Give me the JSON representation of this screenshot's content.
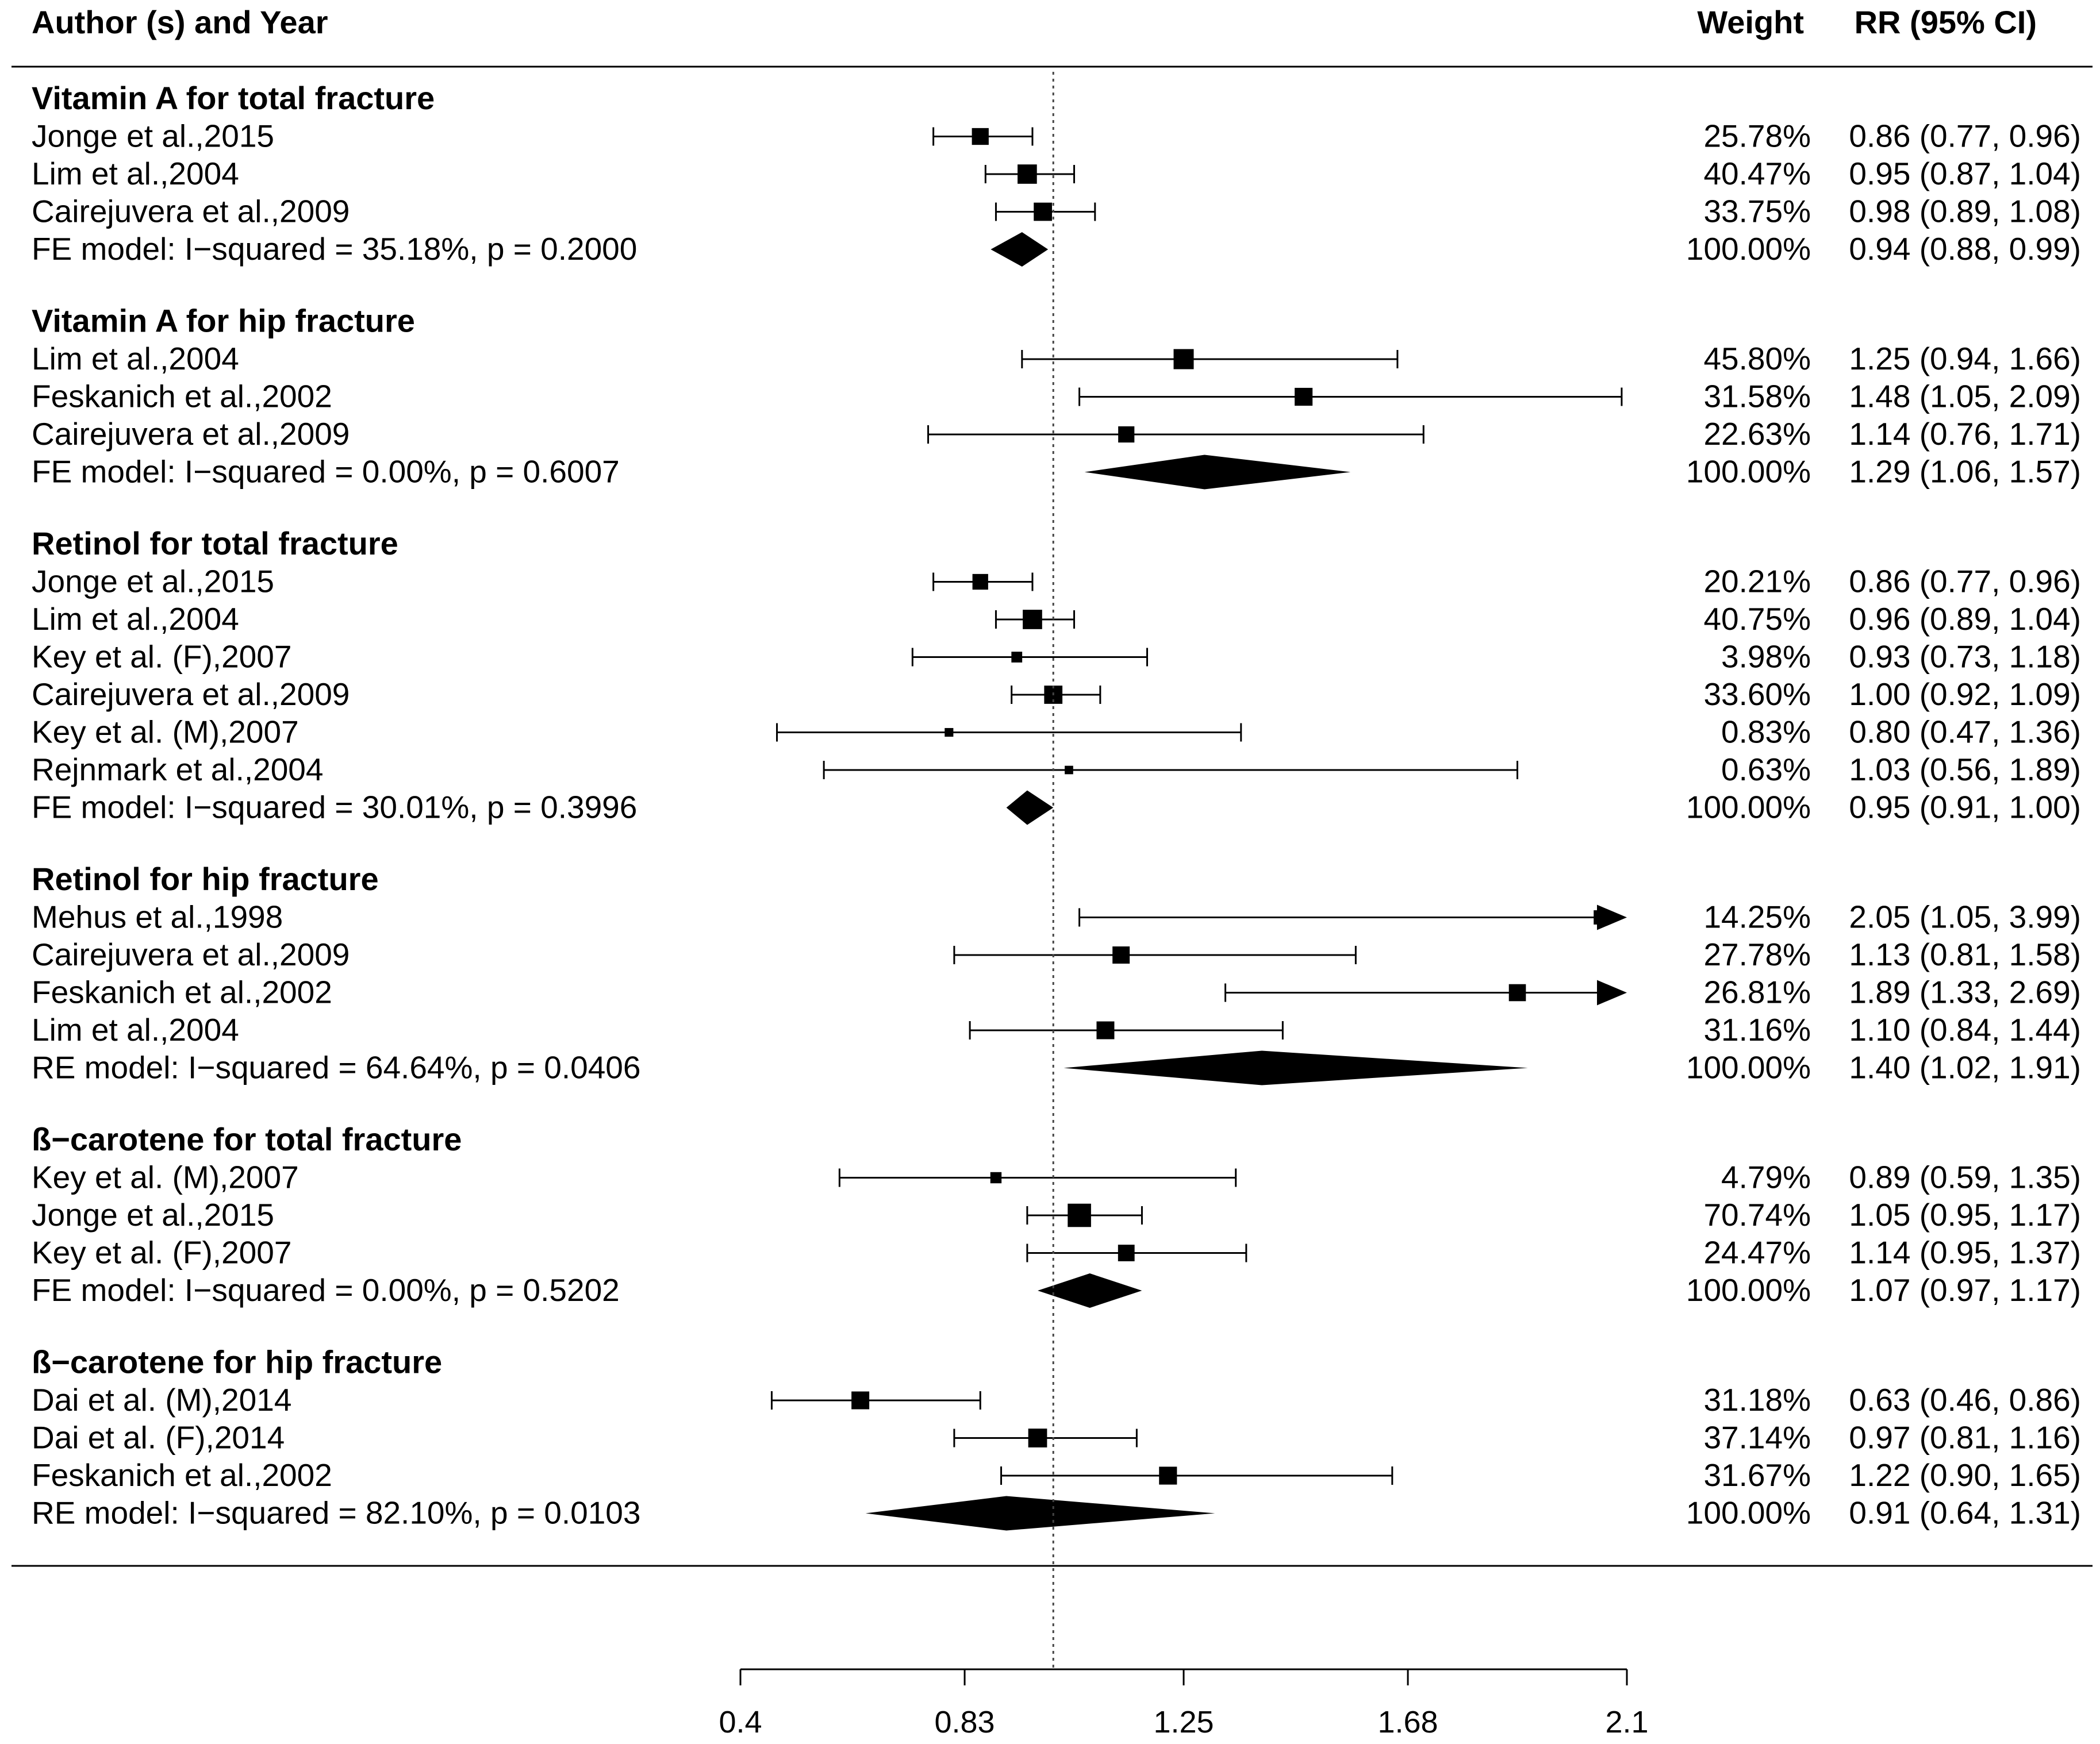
{
  "chart_data": {
    "type": "forest",
    "headers": {
      "study": "Author (s) and Year",
      "weight": "Weight",
      "effect": "RR (95% CI)"
    },
    "axis": {
      "min": 0.4,
      "max": 2.1,
      "ticks": [
        "0.4",
        "0.83",
        "1.25",
        "1.68",
        "2.1"
      ],
      "reference_line": 1.0
    },
    "sections": [
      {
        "title": "Vitamin A for total fracture",
        "studies": [
          {
            "label": "Jonge et al.,2015",
            "rr": 0.86,
            "lo": 0.77,
            "hi": 0.96,
            "weight": "25.78%",
            "ci_text": "0.86 (0.77, 0.96)"
          },
          {
            "label": "Lim et al.,2004",
            "rr": 0.95,
            "lo": 0.87,
            "hi": 1.04,
            "weight": "40.47%",
            "ci_text": "0.95 (0.87, 1.04)"
          },
          {
            "label": "Cairejuvera et al.,2009",
            "rr": 0.98,
            "lo": 0.89,
            "hi": 1.08,
            "weight": "33.75%",
            "ci_text": "0.98 (0.89, 1.08)"
          }
        ],
        "summary": {
          "label": "FE model: I−squared = 35.18%, p = 0.2000",
          "rr": 0.94,
          "lo": 0.88,
          "hi": 0.99,
          "weight": "100.00%",
          "ci_text": "0.94 (0.88, 0.99)"
        }
      },
      {
        "title": "Vitamin A for hip fracture",
        "studies": [
          {
            "label": "Lim et al.,2004",
            "rr": 1.25,
            "lo": 0.94,
            "hi": 1.66,
            "weight": "45.80%",
            "ci_text": "1.25 (0.94, 1.66)"
          },
          {
            "label": "Feskanich et al.,2002",
            "rr": 1.48,
            "lo": 1.05,
            "hi": 2.09,
            "weight": "31.58%",
            "ci_text": "1.48 (1.05, 2.09)"
          },
          {
            "label": "Cairejuvera et al.,2009",
            "rr": 1.14,
            "lo": 0.76,
            "hi": 1.71,
            "weight": "22.63%",
            "ci_text": "1.14 (0.76, 1.71)"
          }
        ],
        "summary": {
          "label": "FE model: I−squared = 0.00%, p = 0.6007",
          "rr": 1.29,
          "lo": 1.06,
          "hi": 1.57,
          "weight": "100.00%",
          "ci_text": "1.29 (1.06, 1.57)"
        }
      },
      {
        "title": "Retinol for total fracture",
        "studies": [
          {
            "label": "Jonge et al.,2015",
            "rr": 0.86,
            "lo": 0.77,
            "hi": 0.96,
            "weight": "20.21%",
            "ci_text": "0.86 (0.77, 0.96)"
          },
          {
            "label": "Lim et al.,2004",
            "rr": 0.96,
            "lo": 0.89,
            "hi": 1.04,
            "weight": "40.75%",
            "ci_text": "0.96 (0.89, 1.04)"
          },
          {
            "label": "Key et al. (F),2007",
            "rr": 0.93,
            "lo": 0.73,
            "hi": 1.18,
            "weight": "3.98%",
            "ci_text": "0.93 (0.73, 1.18)"
          },
          {
            "label": "Cairejuvera et al.,2009",
            "rr": 1.0,
            "lo": 0.92,
            "hi": 1.09,
            "weight": "33.60%",
            "ci_text": "1.00 (0.92, 1.09)"
          },
          {
            "label": "Key et al. (M),2007",
            "rr": 0.8,
            "lo": 0.47,
            "hi": 1.36,
            "weight": "0.83%",
            "ci_text": "0.80 (0.47, 1.36)"
          },
          {
            "label": "Rejnmark et al.,2004",
            "rr": 1.03,
            "lo": 0.56,
            "hi": 1.89,
            "weight": "0.63%",
            "ci_text": "1.03 (0.56, 1.89)"
          }
        ],
        "summary": {
          "label": "FE model: I−squared = 30.01%, p = 0.3996",
          "rr": 0.95,
          "lo": 0.91,
          "hi": 1.0,
          "weight": "100.00%",
          "ci_text": "0.95 (0.91, 1.00)"
        }
      },
      {
        "title": "Retinol for hip fracture",
        "studies": [
          {
            "label": "Mehus et al.,1998",
            "rr": 2.05,
            "lo": 1.05,
            "hi": 3.99,
            "weight": "14.25%",
            "ci_text": "2.05 (1.05, 3.99)"
          },
          {
            "label": "Cairejuvera et al.,2009",
            "rr": 1.13,
            "lo": 0.81,
            "hi": 1.58,
            "weight": "27.78%",
            "ci_text": "1.13 (0.81, 1.58)"
          },
          {
            "label": "Feskanich et al.,2002",
            "rr": 1.89,
            "lo": 1.33,
            "hi": 2.69,
            "weight": "26.81%",
            "ci_text": "1.89 (1.33, 2.69)"
          },
          {
            "label": "Lim et al.,2004",
            "rr": 1.1,
            "lo": 0.84,
            "hi": 1.44,
            "weight": "31.16%",
            "ci_text": "1.10 (0.84, 1.44)"
          }
        ],
        "summary": {
          "label": "RE model: I−squared = 64.64%, p = 0.0406",
          "rr": 1.4,
          "lo": 1.02,
          "hi": 1.91,
          "weight": "100.00%",
          "ci_text": "1.40 (1.02, 1.91)"
        }
      },
      {
        "title": "ß−carotene for total fracture",
        "studies": [
          {
            "label": "Key et al. (M),2007",
            "rr": 0.89,
            "lo": 0.59,
            "hi": 1.35,
            "weight": "4.79%",
            "ci_text": "0.89 (0.59, 1.35)"
          },
          {
            "label": "Jonge et al.,2015",
            "rr": 1.05,
            "lo": 0.95,
            "hi": 1.17,
            "weight": "70.74%",
            "ci_text": "1.05 (0.95, 1.17)"
          },
          {
            "label": "Key et al. (F),2007",
            "rr": 1.14,
            "lo": 0.95,
            "hi": 1.37,
            "weight": "24.47%",
            "ci_text": "1.14 (0.95, 1.37)"
          }
        ],
        "summary": {
          "label": "FE model: I−squared = 0.00%, p = 0.5202",
          "rr": 1.07,
          "lo": 0.97,
          "hi": 1.17,
          "weight": "100.00%",
          "ci_text": "1.07 (0.97, 1.17)"
        }
      },
      {
        "title": "ß−carotene for hip fracture",
        "studies": [
          {
            "label": "Dai et al. (M),2014",
            "rr": 0.63,
            "lo": 0.46,
            "hi": 0.86,
            "weight": "31.18%",
            "ci_text": "0.63 (0.46, 0.86)"
          },
          {
            "label": "Dai et al. (F),2014",
            "rr": 0.97,
            "lo": 0.81,
            "hi": 1.16,
            "weight": "37.14%",
            "ci_text": "0.97 (0.81, 1.16)"
          },
          {
            "label": "Feskanich et al.,2002",
            "rr": 1.22,
            "lo": 0.9,
            "hi": 1.65,
            "weight": "31.67%",
            "ci_text": "1.22 (0.90, 1.65)"
          }
        ],
        "summary": {
          "label": "RE model: I−squared = 82.10%, p = 0.0103",
          "rr": 0.91,
          "lo": 0.64,
          "hi": 1.31,
          "weight": "100.00%",
          "ci_text": "0.91 (0.64, 1.31)"
        }
      }
    ]
  }
}
